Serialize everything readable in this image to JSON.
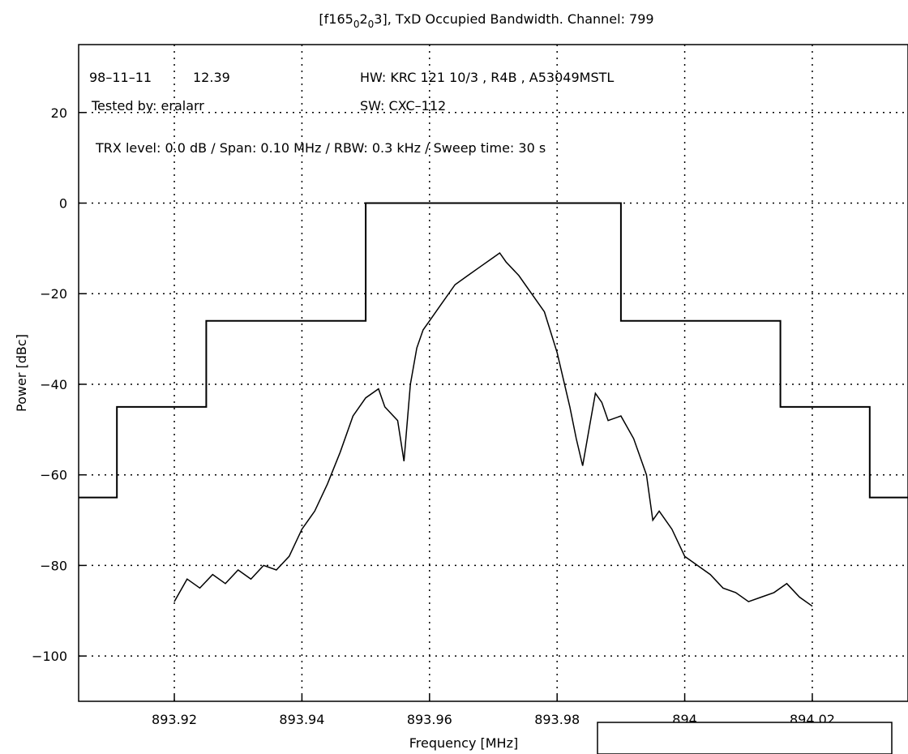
{
  "chart_data": {
    "type": "line",
    "title_parts": [
      "[f165",
      "0",
      "2",
      "0",
      "3], TxD Occupied Bandwidth. Channel: 799"
    ],
    "xlabel": "Frequency [MHz]",
    "ylabel": "Power [dBc]",
    "xlim": [
      893.905,
      894.035
    ],
    "ylim": [
      -110,
      35
    ],
    "x_ticks": [
      893.92,
      893.94,
      893.96,
      893.98,
      894.0,
      894.02
    ],
    "x_tick_labels": [
      "893.92",
      "893.94",
      "893.96",
      "893.98",
      "894",
      "894.02"
    ],
    "y_ticks": [
      -100,
      -80,
      -60,
      -40,
      -20,
      0,
      20
    ],
    "y_tick_labels": [
      "−100",
      "−80",
      "−60",
      "−40",
      "−20",
      "0",
      "20"
    ],
    "grid": true,
    "annotations": {
      "date": "98–11–11",
      "time": "12.39",
      "tested": "Tested by: eralarr",
      "hw": "HW: KRC 121 10/3 , R4B , A53049MSTL",
      "sw": "SW: CXC–112",
      "trx": "TRX level: 0.0 dB / Span: 0.10 MHz / RBW: 0.3 kHz / Sweep time: 30 s"
    },
    "series": [
      {
        "role": "mask",
        "x": [
          893.905,
          893.911,
          893.911,
          893.925,
          893.925,
          893.95,
          893.95,
          893.99,
          893.99,
          894.015,
          894.015,
          894.029,
          894.029,
          894.035
        ],
        "y": [
          -65,
          -65,
          -45,
          -45,
          -26,
          -26,
          0,
          0,
          -26,
          -26,
          -45,
          -45,
          -65,
          -65
        ]
      },
      {
        "role": "spectrum",
        "x": [
          893.92,
          893.922,
          893.924,
          893.926,
          893.928,
          893.93,
          893.932,
          893.934,
          893.936,
          893.938,
          893.94,
          893.942,
          893.944,
          893.946,
          893.948,
          893.95,
          893.952,
          893.953,
          893.955,
          893.956,
          893.957,
          893.958,
          893.959,
          893.96,
          893.962,
          893.964,
          893.966,
          893.968,
          893.97,
          893.971,
          893.972,
          893.974,
          893.976,
          893.978,
          893.98,
          893.982,
          893.983,
          893.984,
          893.985,
          893.986,
          893.987,
          893.988,
          893.99,
          893.992,
          893.994,
          893.995,
          893.996,
          893.998,
          894.0,
          894.002,
          894.004,
          894.006,
          894.008,
          894.01,
          894.012,
          894.014,
          894.016,
          894.018,
          894.02
        ],
        "y": [
          -88,
          -83,
          -85,
          -82,
          -84,
          -81,
          -83,
          -80,
          -81,
          -78,
          -72,
          -68,
          -62,
          -55,
          -47,
          -43,
          -41,
          -45,
          -48,
          -57,
          -40,
          -32,
          -28,
          -26,
          -22,
          -18,
          -16,
          -14,
          -12,
          -11,
          -13,
          -16,
          -20,
          -24,
          -33,
          -45,
          -52,
          -58,
          -50,
          -42,
          -44,
          -48,
          -47,
          -52,
          -60,
          -70,
          -68,
          -72,
          -78,
          -80,
          -82,
          -85,
          -86,
          -88,
          -87,
          -86,
          -84,
          -87,
          -89
        ]
      }
    ]
  }
}
